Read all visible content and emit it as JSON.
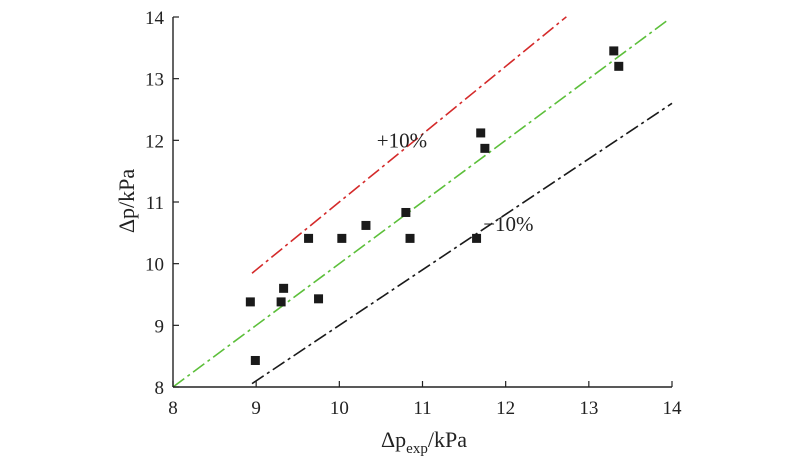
{
  "chart_data": {
    "type": "scatter",
    "title": "",
    "xlabel": {
      "symbol": "Δp",
      "subscript": "exp",
      "unit": "/kPa"
    },
    "ylabel": {
      "symbol": "Δp",
      "unit": "/kPa"
    },
    "xlim": [
      8,
      14
    ],
    "ylim": [
      8,
      14
    ],
    "xticks": [
      "8",
      "9",
      "10",
      "11",
      "12",
      "13",
      "14"
    ],
    "yticks": [
      "8",
      "9",
      "10",
      "11",
      "12",
      "13",
      "14"
    ],
    "grid": false,
    "legend": "none",
    "points": [
      {
        "x": 8.93,
        "y": 9.38
      },
      {
        "x": 8.99,
        "y": 8.43
      },
      {
        "x": 9.3,
        "y": 9.38
      },
      {
        "x": 9.33,
        "y": 9.6
      },
      {
        "x": 9.63,
        "y": 10.41
      },
      {
        "x": 9.75,
        "y": 9.43
      },
      {
        "x": 10.03,
        "y": 10.41
      },
      {
        "x": 10.32,
        "y": 10.62
      },
      {
        "x": 10.8,
        "y": 10.83
      },
      {
        "x": 10.85,
        "y": 10.41
      },
      {
        "x": 11.65,
        "y": 10.41
      },
      {
        "x": 11.7,
        "y": 12.12
      },
      {
        "x": 11.75,
        "y": 11.87
      },
      {
        "x": 13.3,
        "y": 13.45
      },
      {
        "x": 13.36,
        "y": 13.2
      }
    ],
    "reference_lines": [
      {
        "slope": 1.1,
        "from_x": 8.95,
        "to_x": 12.73,
        "color": "#d42a2a",
        "annotation": "+10%"
      },
      {
        "slope": 1.0,
        "from_x": 8.0,
        "to_x": 13.95,
        "color": "#5cbf3a",
        "annotation": ""
      },
      {
        "slope": 0.9,
        "from_x": 8.95,
        "to_x": 14.0,
        "color": "#1a1a1a",
        "annotation": "−10%"
      }
    ],
    "annotations": [
      {
        "text": "+10%",
        "x": 10.45,
        "y": 11.88
      },
      {
        "text": "−10%",
        "x": 11.73,
        "y": 10.53
      }
    ],
    "marker_color": "#1a1a1a",
    "axis_color": "#222222"
  }
}
